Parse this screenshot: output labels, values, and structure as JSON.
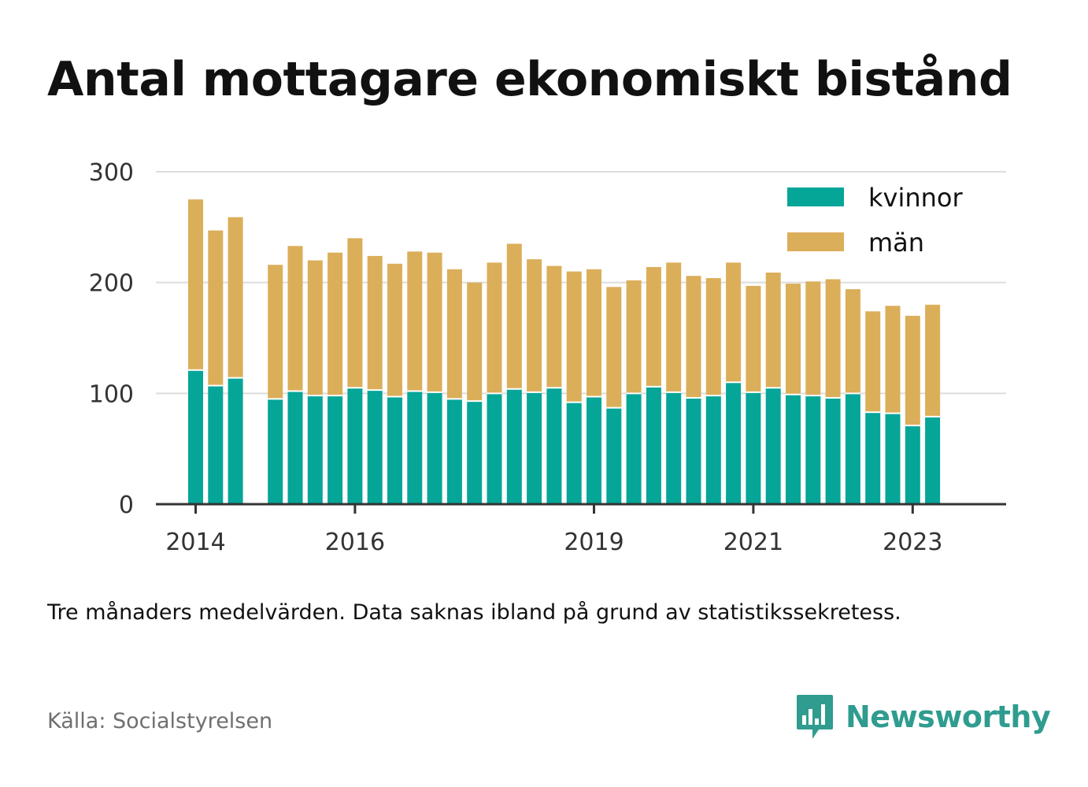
{
  "title": "Antal mottagare ekonomiskt bistånd",
  "note": "Tre månaders medelvärden. Data saknas ibland på grund av statistikssekretess.",
  "source": "Källa: Socialstyrelsen",
  "brand": {
    "name": "Newsworthy",
    "icon": "newsworthy-bar-chart-icon",
    "color": "#2f9c8f"
  },
  "chart_data": {
    "type": "bar",
    "stacked": true,
    "grid": true,
    "legend_position": "top-right",
    "ylim": [
      0,
      300
    ],
    "yticks": [
      0,
      100,
      200,
      300
    ],
    "xticks": [
      "2014",
      "2016",
      "2019",
      "2021",
      "2023"
    ],
    "xtick_positions": [
      0,
      8,
      20,
      28,
      36
    ],
    "x_start": "2014",
    "categories": [
      1,
      2,
      3,
      4,
      5,
      6,
      7,
      8,
      9,
      10,
      11,
      12,
      13,
      14,
      15,
      16,
      17,
      18,
      19,
      20,
      21,
      22,
      23,
      24,
      25,
      26,
      27,
      28,
      29,
      30,
      31,
      32,
      33,
      34,
      35,
      36,
      37,
      38
    ],
    "series": [
      {
        "name": "kvinnor",
        "color": "#05a598",
        "values": [
          121,
          107,
          114,
          null,
          95,
          102,
          98,
          98,
          105,
          103,
          97,
          102,
          101,
          95,
          93,
          100,
          104,
          101,
          105,
          92,
          97,
          87,
          100,
          106,
          101,
          96,
          98,
          110,
          101,
          105,
          99,
          98,
          96,
          100,
          83,
          82,
          71,
          79
        ]
      },
      {
        "name": "män",
        "color": "#dbae5a",
        "values": [
          154,
          140,
          145,
          null,
          121,
          131,
          122,
          129,
          135,
          121,
          120,
          126,
          126,
          117,
          107,
          118,
          131,
          120,
          110,
          118,
          115,
          109,
          102,
          108,
          117,
          110,
          106,
          108,
          96,
          104,
          100,
          103,
          107,
          94,
          91,
          97,
          99,
          101
        ]
      }
    ]
  }
}
